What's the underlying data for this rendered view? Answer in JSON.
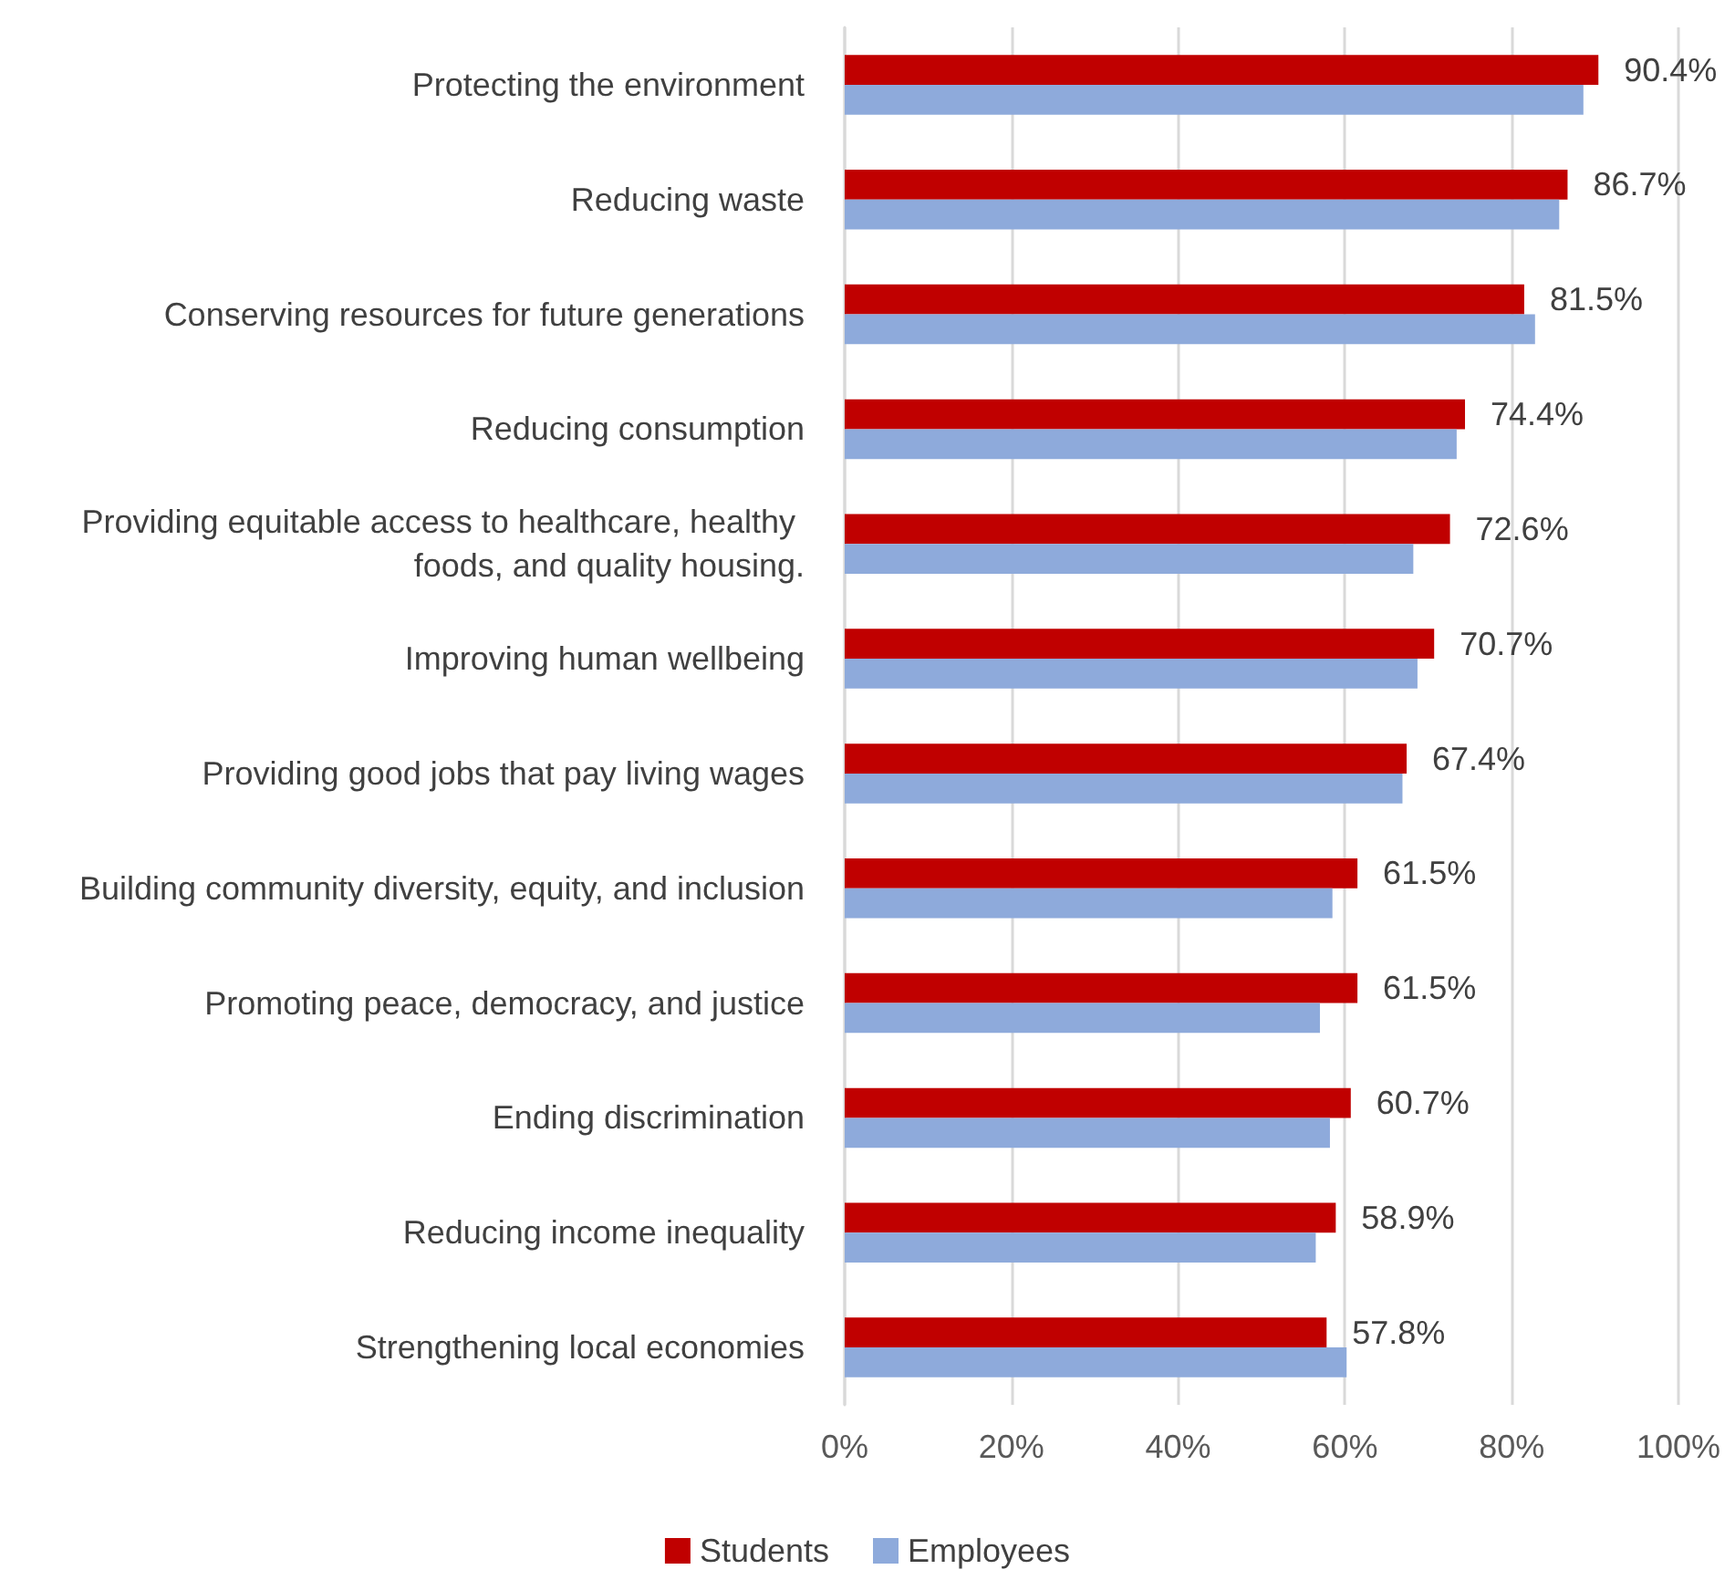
{
  "chart_data": {
    "type": "bar",
    "orientation": "horizontal",
    "categories": [
      "Protecting the environment",
      "Reducing waste",
      "Conserving resources for future generations",
      "Reducing consumption",
      "Providing equitable access to healthcare, healthy foods, and quality housing.",
      "Improving human wellbeing",
      "Providing good jobs that pay living wages",
      "Building community diversity, equity, and inclusion",
      "Promoting peace, democracy, and justice",
      "Ending discrimination",
      "Reducing income inequality",
      "Strengthening local economies"
    ],
    "series": [
      {
        "name": "Students",
        "color": "#c00000",
        "values": [
          90.4,
          86.7,
          81.5,
          74.4,
          72.6,
          70.7,
          67.4,
          61.5,
          61.5,
          60.7,
          58.9,
          57.8
        ],
        "value_labels": [
          "90.4%",
          "86.7%",
          "81.5%",
          "74.4%",
          "72.6%",
          "70.7%",
          "67.4%",
          "61.5%",
          "61.5%",
          "60.7%",
          "58.9%",
          "57.8%"
        ]
      },
      {
        "name": "Employees",
        "color": "#8eaadb",
        "values": [
          88.6,
          85.7,
          82.8,
          73.4,
          68.2,
          68.7,
          66.9,
          58.5,
          57.0,
          58.2,
          56.5,
          60.2
        ]
      }
    ],
    "xlim": [
      0,
      100
    ],
    "xticks": [
      {
        "value": 0,
        "label": "0%"
      },
      {
        "value": 20,
        "label": "20%"
      },
      {
        "value": 40,
        "label": "40%"
      },
      {
        "value": 60,
        "label": "60%"
      },
      {
        "value": 80,
        "label": "80%"
      },
      {
        "value": 100,
        "label": "100%"
      }
    ],
    "grid": "x",
    "legend": "bottom"
  }
}
